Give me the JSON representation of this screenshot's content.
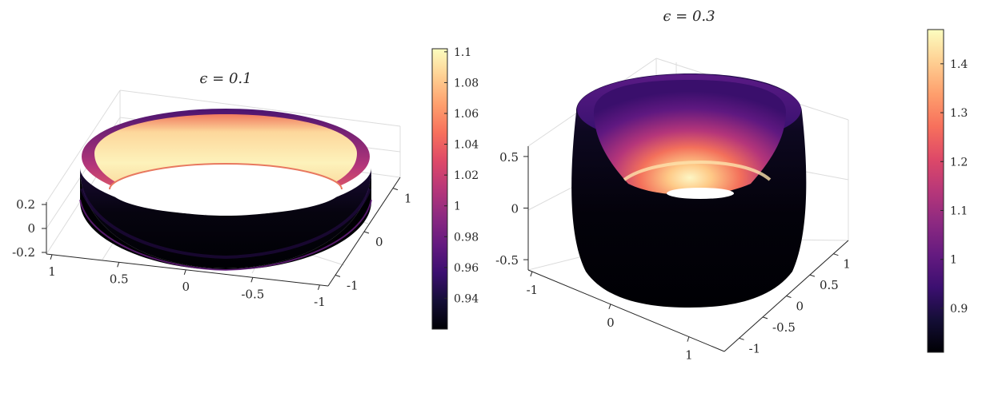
{
  "chart_data": [
    {
      "type": "surface",
      "title": "ϵ = 0.1",
      "x_ticks": [
        "1",
        "0.5",
        "0",
        "-0.5",
        "-1"
      ],
      "y_ticks": [
        "1",
        "0",
        "-1"
      ],
      "z_ticks": [
        "0.2",
        "0",
        "-0.2"
      ],
      "xlim": [
        -1,
        1
      ],
      "ylim": [
        -1,
        1
      ],
      "zlim": [
        -0.2,
        0.2
      ],
      "colorbar": {
        "range": [
          0.92,
          1.102
        ],
        "ticks": [
          "1.1",
          "1.08",
          "1.06",
          "1.04",
          "1.02",
          "1",
          "0.98",
          "0.96",
          "0.94"
        ],
        "tick_values": [
          1.1,
          1.08,
          1.06,
          1.04,
          1.02,
          1.0,
          0.98,
          0.96,
          0.94
        ]
      },
      "colormap": "magma",
      "grid": true
    },
    {
      "type": "surface",
      "title": "ϵ = 0.3",
      "x_ticks": [
        "-1",
        "0",
        "1"
      ],
      "y_ticks": [
        "1",
        "0.5",
        "0",
        "-0.5",
        "-1"
      ],
      "z_ticks": [
        "0.5",
        "0",
        "-0.5"
      ],
      "xlim": [
        -1,
        1
      ],
      "ylim": [
        -1,
        1
      ],
      "zlim": [
        -0.6,
        0.6
      ],
      "colorbar": {
        "range": [
          0.81,
          1.47
        ],
        "ticks": [
          "1.4",
          "1.3",
          "1.2",
          "1.1",
          "1",
          "0.9"
        ],
        "tick_values": [
          1.4,
          1.3,
          1.2,
          1.1,
          1.0,
          0.9
        ]
      },
      "colormap": "magma",
      "grid": true
    }
  ],
  "colors": {
    "magma_stops": [
      "#000004",
      "#140e36",
      "#3b0f70",
      "#641a80",
      "#8c2981",
      "#b73779",
      "#de4968",
      "#f7705c",
      "#fe9f6d",
      "#fecf92",
      "#fcfdbf"
    ],
    "axis": "#262626",
    "grid": "#dcdcdc"
  }
}
